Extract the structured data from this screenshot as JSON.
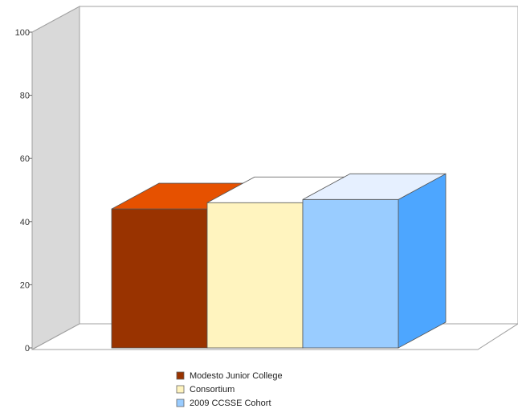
{
  "chart_data": {
    "type": "bar",
    "title": "",
    "xlabel": "",
    "ylabel": "",
    "ylim": [
      0,
      100
    ],
    "yticks": [
      0,
      20,
      40,
      60,
      80,
      100
    ],
    "grid": false,
    "legend_position": "bottom",
    "three_d": true,
    "series": [
      {
        "name": "Modesto Junior College",
        "value": 44,
        "front_color": "#993300",
        "top_color": "#e65100",
        "side_color": "#7a2600",
        "swatch_color": "#993300"
      },
      {
        "name": "Consortium",
        "value": 46,
        "front_color": "#fff4bf",
        "top_color": "#ffffff",
        "side_color": "#e8dca8",
        "swatch_color": "#fff4bf"
      },
      {
        "name": "2009 CCSSE Cohort",
        "value": 47,
        "front_color": "#99ccff",
        "top_color": "#e6f0ff",
        "side_color": "#4da6ff",
        "swatch_color": "#99ccff"
      }
    ]
  }
}
